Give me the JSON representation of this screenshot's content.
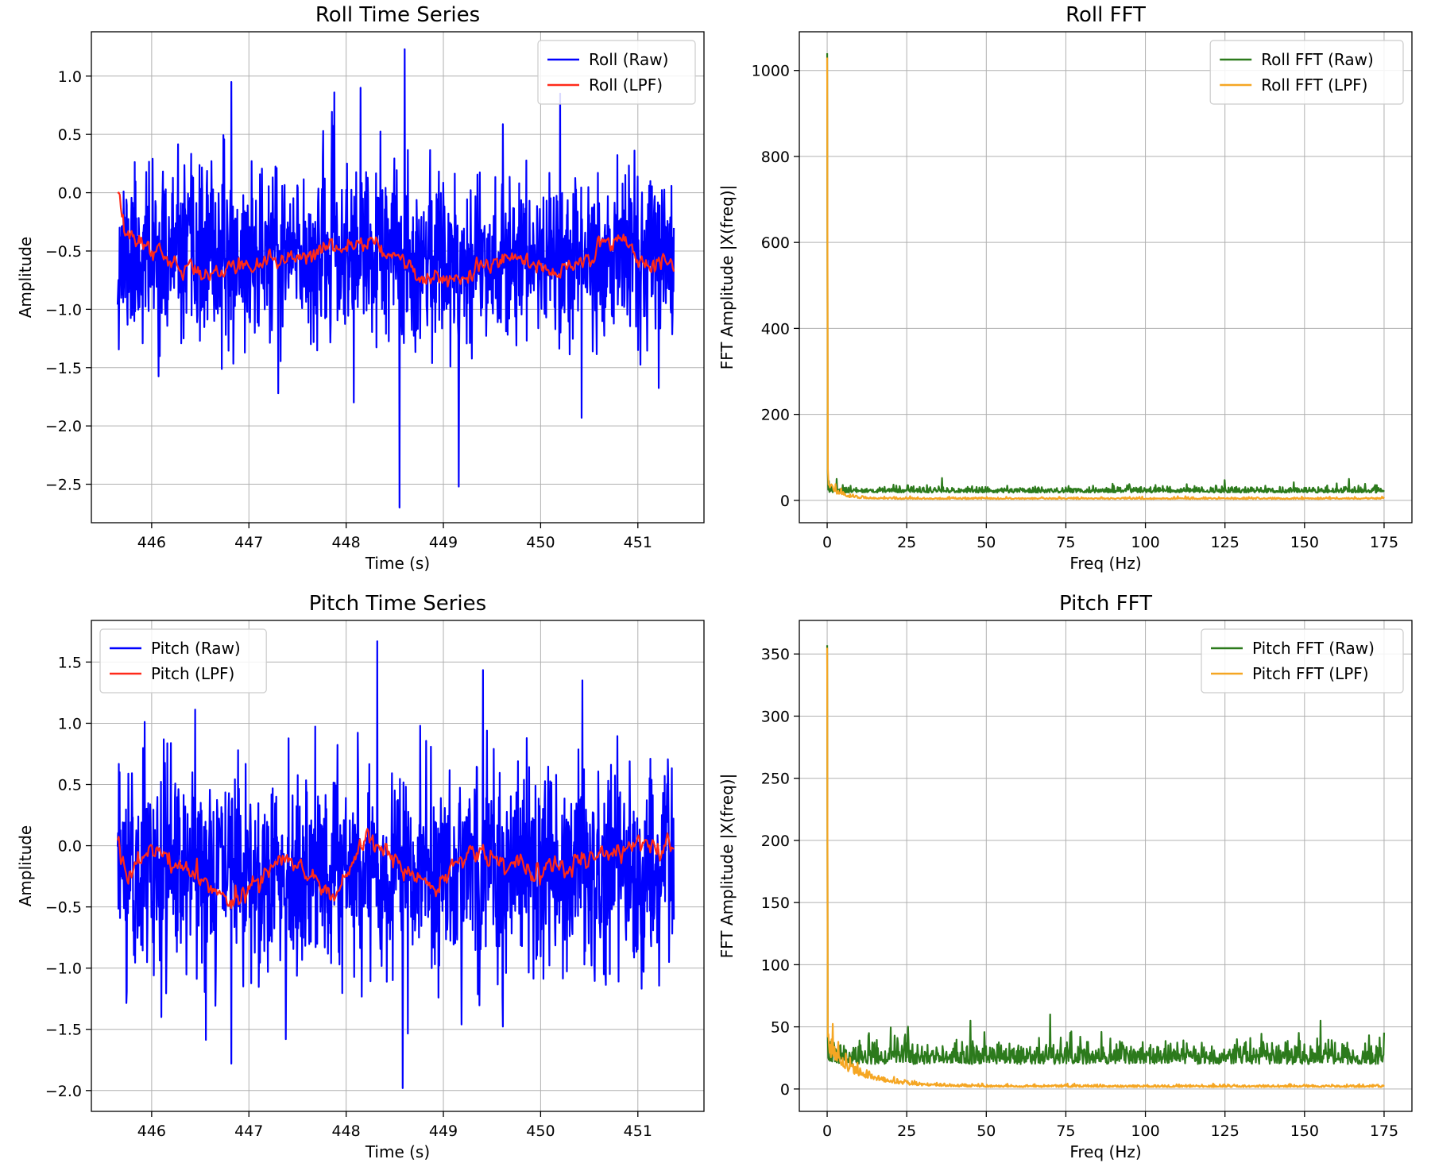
{
  "chart_data": [
    {
      "id": "roll-ts",
      "type": "line",
      "title": "Roll Time Series",
      "xlabel": "Time (s)",
      "ylabel": "Amplitude",
      "xlim": [
        445.38,
        451.68
      ],
      "ylim": [
        -2.83,
        1.38
      ],
      "xticks": [
        446,
        447,
        448,
        449,
        450,
        451
      ],
      "yticks": [
        -2.5,
        -2.0,
        -1.5,
        -1.0,
        -0.5,
        0.0,
        0.5,
        1.0
      ],
      "x_start": 445.65,
      "x_end": 451.37,
      "grid": true,
      "legend_position": "top-right",
      "series": [
        {
          "name": "Roll (Raw)",
          "color": "#0000ff",
          "kind": "noise",
          "base": -0.55,
          "sigma": 0.36,
          "n": 1400,
          "seed": 11,
          "features": [
            [
              445.67,
              -0.3
            ],
            [
              446.82,
              0.95
            ],
            [
              447.3,
              -1.72
            ],
            [
              447.88,
              0.86
            ],
            [
              448.15,
              0.9
            ],
            [
              448.6,
              1.23
            ],
            [
              448.55,
              -2.7
            ],
            [
              449.16,
              -2.52
            ],
            [
              450.2,
              0.85
            ],
            [
              450.42,
              -1.93
            ],
            [
              451.0,
              -1.35
            ]
          ]
        },
        {
          "name": "Roll (LPF)",
          "color": "#ff2a1a",
          "kind": "smooth",
          "base": -0.53,
          "sigma": 0.045,
          "n": 520,
          "seed": 12,
          "features": [
            [
              445.66,
              -0.05
            ],
            [
              445.72,
              -0.35
            ],
            [
              446.45,
              -0.7
            ],
            [
              446.9,
              -0.63
            ],
            [
              447.5,
              -0.55
            ],
            [
              448.3,
              -0.4
            ],
            [
              448.72,
              -0.7
            ],
            [
              449.2,
              -0.75
            ],
            [
              449.6,
              -0.55
            ],
            [
              450.2,
              -0.7
            ],
            [
              450.82,
              -0.35
            ],
            [
              451.0,
              -0.58
            ],
            [
              451.35,
              -0.62
            ]
          ]
        }
      ]
    },
    {
      "id": "roll-fft",
      "type": "line",
      "title": "Roll FFT",
      "xlabel": "Freq (Hz)",
      "ylabel": "FFT Amplitude |X(freq)|",
      "xlim": [
        -8.75,
        183.75
      ],
      "ylim": [
        -52,
        1090
      ],
      "xticks": [
        0,
        25,
        50,
        75,
        100,
        125,
        150,
        175
      ],
      "yticks": [
        0,
        200,
        400,
        600,
        800,
        1000
      ],
      "x_start": 0,
      "x_end": 175,
      "grid": true,
      "legend_position": "top-right",
      "series": [
        {
          "name": "Roll FFT (Raw)",
          "color": "#2c7a1c",
          "kind": "fft",
          "peak": 1040,
          "base": 18,
          "sigma": 7,
          "lowpass_hz": 0,
          "n": 1000,
          "seed": 21,
          "features": [
            [
              0.5,
              45
            ],
            [
              3,
              50
            ],
            [
              36,
              52
            ],
            [
              164,
              50
            ]
          ]
        },
        {
          "name": "Roll FFT (LPF)",
          "color": "#f5a623",
          "kind": "fft",
          "peak": 1030,
          "base": 3,
          "sigma": 2,
          "lowpass_hz": 4,
          "n": 800,
          "seed": 22,
          "features": [
            [
              0.6,
              35
            ],
            [
              2,
              25
            ]
          ]
        }
      ]
    },
    {
      "id": "pitch-ts",
      "type": "line",
      "title": "Pitch Time Series",
      "xlabel": "Time (s)",
      "ylabel": "Amplitude",
      "xlim": [
        445.38,
        451.68
      ],
      "ylim": [
        -2.17,
        1.84
      ],
      "xticks": [
        446,
        447,
        448,
        449,
        450,
        451
      ],
      "yticks": [
        -2.0,
        -1.5,
        -1.0,
        -0.5,
        0.0,
        0.5,
        1.0,
        1.5
      ],
      "x_start": 445.65,
      "x_end": 451.37,
      "grid": true,
      "legend_position": "top-left",
      "series": [
        {
          "name": "Pitch (Raw)",
          "color": "#0000ff",
          "kind": "noise",
          "base": -0.2,
          "sigma": 0.42,
          "n": 1400,
          "seed": 31,
          "features": [
            [
              445.67,
              0.6
            ],
            [
              446.82,
              -1.78
            ],
            [
              447.38,
              -1.58
            ],
            [
              448.32,
              1.67
            ],
            [
              448.58,
              -1.98
            ],
            [
              450.43,
              1.35
            ],
            [
              450.65,
              -1.05
            ],
            [
              451.32,
              -0.95
            ]
          ]
        },
        {
          "name": "Pitch (LPF)",
          "color": "#ff2a1a",
          "kind": "smooth",
          "base": -0.2,
          "sigma": 0.05,
          "n": 520,
          "seed": 32,
          "features": [
            [
              445.66,
              0.03
            ],
            [
              445.75,
              -0.25
            ],
            [
              446.0,
              0.0
            ],
            [
              446.8,
              -0.45
            ],
            [
              447.4,
              -0.1
            ],
            [
              447.9,
              -0.4
            ],
            [
              448.2,
              0.05
            ],
            [
              448.9,
              -0.35
            ],
            [
              449.3,
              -0.05
            ],
            [
              450.0,
              -0.2
            ],
            [
              451.1,
              0.0
            ],
            [
              451.35,
              -0.05
            ]
          ]
        }
      ]
    },
    {
      "id": "pitch-fft",
      "type": "line",
      "title": "Pitch FFT",
      "xlabel": "Freq (Hz)",
      "ylabel": "FFT Amplitude |X(freq)|",
      "xlim": [
        -8.75,
        183.75
      ],
      "ylim": [
        -18,
        377
      ],
      "xticks": [
        0,
        25,
        50,
        75,
        100,
        125,
        150,
        175
      ],
      "yticks": [
        0,
        50,
        100,
        150,
        200,
        250,
        300,
        350
      ],
      "x_start": 0,
      "x_end": 175,
      "grid": true,
      "legend_position": "top-right",
      "series": [
        {
          "name": "Pitch FFT (Raw)",
          "color": "#2c7a1c",
          "kind": "fft",
          "peak": 357,
          "base": 20,
          "sigma": 9,
          "lowpass_hz": 0,
          "n": 1000,
          "seed": 41,
          "features": [
            [
              1,
              38
            ],
            [
              45,
              55
            ],
            [
              70,
              60
            ],
            [
              155,
              55
            ]
          ]
        },
        {
          "name": "Pitch FFT (LPF)",
          "color": "#f5a623",
          "kind": "fft",
          "peak": 355,
          "base": 1.5,
          "sigma": 1,
          "lowpass_hz": 10,
          "n": 900,
          "seed": 42,
          "features": [
            [
              0.6,
              35
            ],
            [
              3,
              25
            ],
            [
              8,
              18
            ]
          ]
        }
      ]
    }
  ]
}
